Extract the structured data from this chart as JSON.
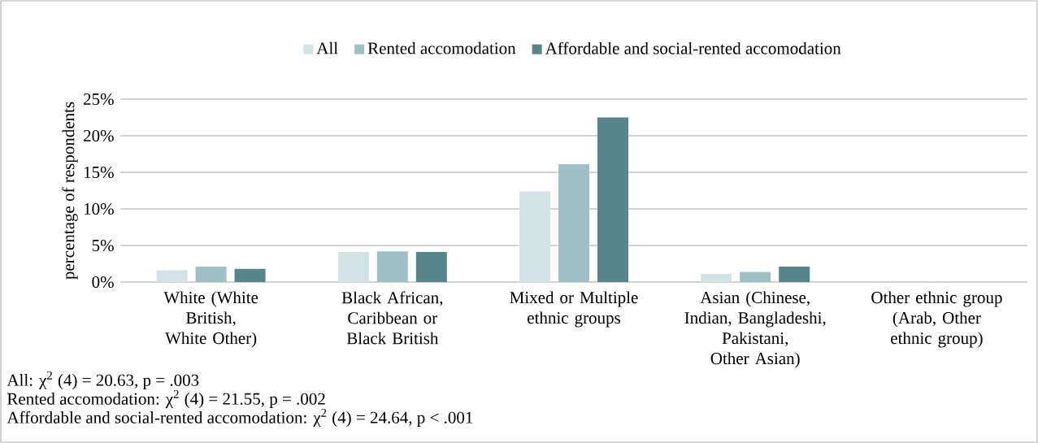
{
  "chart_data": {
    "type": "bar",
    "ylabel": "percentage of respondents",
    "categories": [
      "White (White British, White Other)",
      "Black African, Caribbean or Black British",
      "Mixed or Multiple ethnic groups",
      "Asian (Chinese, Indian, Bangladeshi, Pakistani, Other Asian)",
      "Other ethnic group (Arab, Other ethnic group)"
    ],
    "series": [
      {
        "name": "All",
        "color": "#d3e2e4",
        "values": [
          1.6,
          4.1,
          12.4,
          1.1,
          0
        ]
      },
      {
        "name": "Rented accomodation",
        "color": "#9fc0c5",
        "values": [
          2.1,
          4.2,
          16.1,
          1.4,
          0
        ]
      },
      {
        "name": "Affordable and social-rented accomodation",
        "color": "#56868b",
        "values": [
          1.8,
          4.1,
          22.5,
          2.1,
          0
        ]
      }
    ],
    "ylim": [
      0,
      25
    ],
    "yticks": [
      {
        "value": 0,
        "label": "0%"
      },
      {
        "value": 5,
        "label": "5%"
      },
      {
        "value": 10,
        "label": "10%"
      },
      {
        "value": 15,
        "label": "15%"
      },
      {
        "value": 20,
        "label": "20%"
      },
      {
        "value": 25,
        "label": "25%"
      }
    ],
    "grid": "y",
    "legend": "top",
    "annotations": [
      "All: χ$^{2}$ (4) = 20.63, p = .003",
      "Rented accomodation: χ$^{2}$ (4) = 21.55, p = .002",
      "Affordable and social-rented accomodation: χ$^{2}$ (4) = 24.64, p < .001"
    ]
  }
}
